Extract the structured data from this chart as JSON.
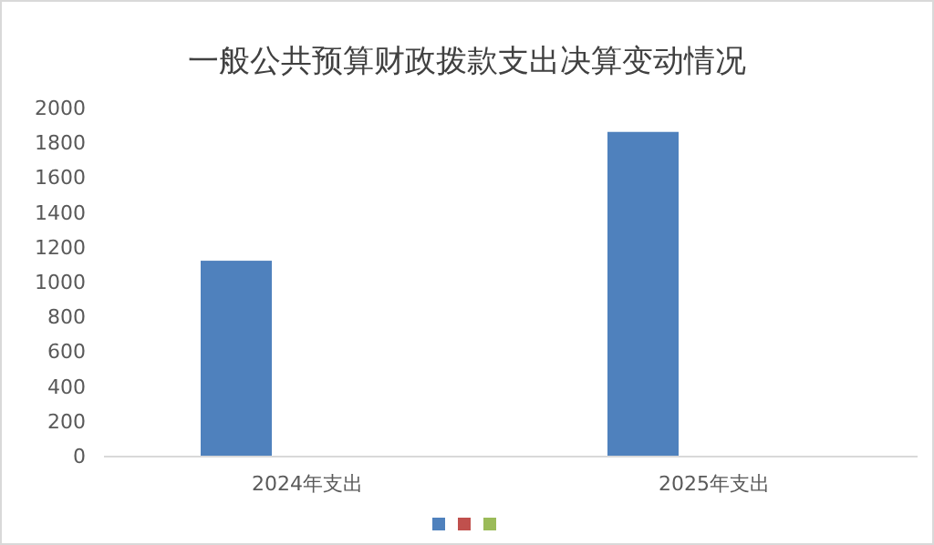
{
  "chart_data": {
    "type": "bar",
    "title": "一般公共预算财政拨款支出决算变动情况",
    "categories": [
      "2024年支出",
      "2025年支出"
    ],
    "series": [
      {
        "color": "#4f81bd",
        "values": [
          1120,
          1860
        ]
      },
      {
        "color": "#c0504d",
        "values": [
          null,
          null
        ]
      },
      {
        "color": "#9bbb59",
        "values": [
          null,
          null
        ]
      }
    ],
    "ylim": [
      0,
      2000
    ],
    "yticks": [
      0,
      200,
      400,
      600,
      800,
      1000,
      1200,
      1400,
      1600,
      1800,
      2000
    ],
    "grid": false
  }
}
